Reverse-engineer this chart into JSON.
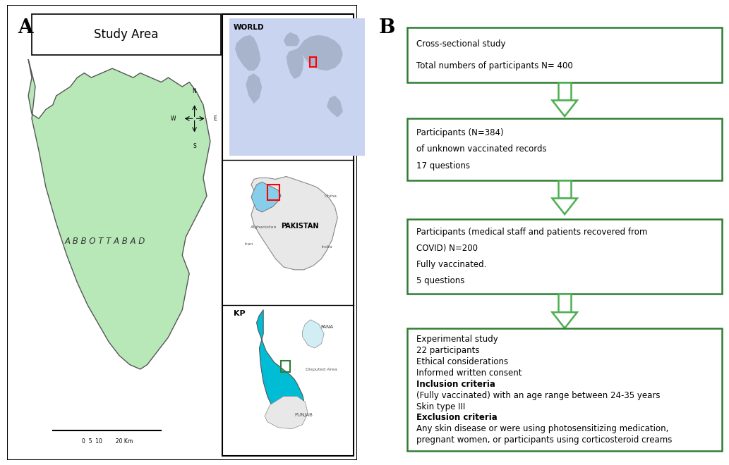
{
  "panel_A_label": "A",
  "panel_B_label": "B",
  "study_area_title": "Study Area",
  "abbottabad_label": "A B B O T T A B A D",
  "box_color": "#2e7d32",
  "arrow_color": "#4caf50",
  "boxes": [
    {
      "lines": [
        "Cross-sectional study",
        "Total numbers of participants N= 400"
      ],
      "bold_lines": []
    },
    {
      "lines": [
        "Participants (N=384)",
        "of unknown vaccinated records",
        "17 questions"
      ],
      "bold_lines": []
    },
    {
      "lines": [
        "Participants (medical staff and patients recovered from",
        "COVID) N=200",
        "Fully vaccinated.",
        "5 questions"
      ],
      "bold_lines": []
    },
    {
      "lines": [
        "Experimental study",
        "22 participants",
        "Ethical considerations",
        "Informed written consent",
        "Inclusion criteria",
        "(Fully vaccinated) with an age range between 24-35 years",
        "Skin type III",
        "Exclusion criteria",
        "Any skin disease or were using photosensitizing medication,",
        "pregnant women, or participants using corticosteroid creams"
      ],
      "bold_lines": [
        "Inclusion criteria",
        "Exclusion criteria"
      ]
    }
  ],
  "world_label": "WORLD",
  "pakistan_label": "PAKISTAN",
  "kp_label": "KP",
  "scale_label": "0  5  10        20 Km",
  "map_green": "#b8e8b8",
  "map_green_dark": "#555555",
  "cyan_color": "#00bcd4",
  "world_bg": "#c8d4f0",
  "land_color": "#a8b4cc"
}
